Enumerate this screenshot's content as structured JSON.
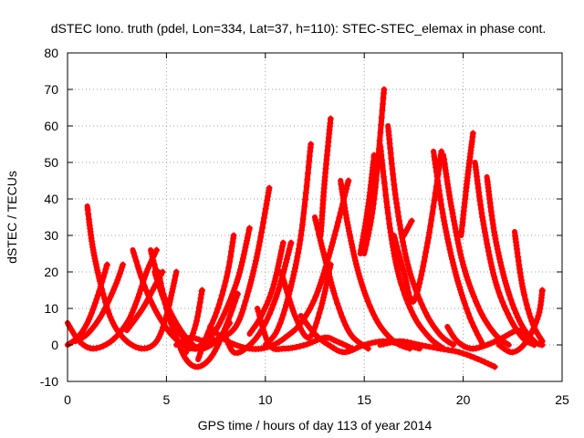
{
  "chart_data": {
    "type": "scatter",
    "title": "dSTEC Iono. truth (pdel, Lon=334, Lat=37, h=110): STEC-STEC_elemax in phase cont.",
    "xlabel": "GPS time / hours of day 113 of year 2014",
    "ylabel": "dSTEC  / TECUs",
    "xlim": [
      0,
      25
    ],
    "ylim": [
      -10,
      80
    ],
    "xticks": [
      0,
      5,
      10,
      15,
      20,
      25
    ],
    "yticks": [
      -10,
      0,
      10,
      20,
      30,
      40,
      50,
      60,
      70,
      80
    ],
    "grid": true,
    "marker": "+",
    "color": "#ff0000",
    "series": [
      {
        "x": [
          1.0,
          1.3,
          1.8,
          2.3,
          3.0,
          3.8,
          4.5,
          5.0,
          5.5
        ],
        "y": [
          38,
          26,
          14,
          6,
          1,
          -1,
          1,
          8,
          20
        ]
      },
      {
        "x": [
          0.0,
          0.5,
          1.0,
          1.5,
          2.0
        ],
        "y": [
          0,
          2,
          6,
          13,
          22
        ]
      },
      {
        "x": [
          0.0,
          0.6,
          1.3,
          2.2,
          3.0,
          3.5,
          4.0,
          4.5
        ],
        "y": [
          6,
          1,
          -1,
          1,
          6,
          12,
          20,
          26
        ]
      },
      {
        "x": [
          0.4,
          1.0,
          1.7,
          2.4,
          2.8
        ],
        "y": [
          1,
          3,
          8,
          16,
          22
        ]
      },
      {
        "x": [
          3.3,
          3.9,
          4.6,
          5.4,
          6.3,
          7.3
        ],
        "y": [
          26,
          16,
          8,
          2,
          -1,
          2
        ]
      },
      {
        "x": [
          4.2,
          4.6,
          5.2,
          6.0,
          6.7,
          7.5,
          8.2
        ],
        "y": [
          26,
          18,
          9,
          2,
          -1,
          1,
          6
        ]
      },
      {
        "x": [
          4.4,
          4.9,
          5.6,
          6.4,
          7.0,
          7.7,
          8.6,
          9.2
        ],
        "y": [
          20,
          12,
          4,
          -1,
          1,
          6,
          18,
          32
        ]
      },
      {
        "x": [
          3.0,
          3.8,
          4.4,
          4.8
        ],
        "y": [
          4,
          10,
          16,
          20
        ]
      },
      {
        "x": [
          4.6,
          5.0,
          5.5,
          6.0,
          6.6,
          7.3,
          8.0,
          8.6
        ],
        "y": [
          20,
          10,
          2,
          -4,
          -6,
          -3,
          5,
          14
        ]
      },
      {
        "x": [
          5.5,
          6.2,
          7.0,
          7.8,
          8.5,
          9.0,
          9.6,
          10.2
        ],
        "y": [
          0,
          2,
          1,
          2,
          5,
          12,
          25,
          43
        ]
      },
      {
        "x": [
          6.0,
          6.5,
          6.8
        ],
        "y": [
          -2,
          6,
          15
        ]
      },
      {
        "x": [
          6.6,
          7.0,
          7.6,
          8.1,
          8.4
        ],
        "y": [
          -4,
          2,
          10,
          20,
          30
        ]
      },
      {
        "x": [
          7.2,
          7.8,
          8.5,
          9.2,
          9.8,
          10.4,
          11.0,
          11.8,
          12.6,
          13.4,
          14.2
        ],
        "y": [
          5,
          2,
          0,
          -1,
          -1,
          0,
          2,
          6,
          14,
          28,
          45
        ]
      },
      {
        "x": [
          8.0,
          8.4,
          9.0,
          9.8,
          10.6,
          11.3
        ],
        "y": [
          2,
          -2,
          -1,
          4,
          14,
          28
        ]
      },
      {
        "x": [
          9.2,
          9.8,
          10.4,
          10.9
        ],
        "y": [
          3,
          8,
          16,
          28
        ]
      },
      {
        "x": [
          10.0,
          10.6,
          11.2,
          11.8,
          12.3
        ],
        "y": [
          0,
          4,
          14,
          30,
          55
        ]
      },
      {
        "x": [
          9.6,
          10.2,
          11.0,
          12.0,
          13.0,
          13.6,
          14.4
        ],
        "y": [
          10,
          0,
          -1,
          0,
          2,
          1,
          -1
        ]
      },
      {
        "x": [
          10.8,
          11.5,
          12.2,
          12.8,
          13.3
        ],
        "y": [
          20,
          8,
          2,
          10,
          22
        ]
      },
      {
        "x": [
          11.8,
          12.5,
          13.2,
          14.0,
          15.0,
          16.0,
          17.0,
          17.8
        ],
        "y": [
          8,
          3,
          0,
          -2,
          0,
          1,
          0,
          -1
        ]
      },
      {
        "x": [
          12.8,
          13.0,
          13.3
        ],
        "y": [
          30,
          45,
          62
        ]
      },
      {
        "x": [
          12.5,
          13.0,
          13.6,
          14.3,
          15.2
        ],
        "y": [
          35,
          24,
          12,
          3,
          -1
        ]
      },
      {
        "x": [
          13.8,
          14.2,
          14.8,
          15.6,
          16.5,
          17.3
        ],
        "y": [
          45,
          32,
          18,
          7,
          1,
          -1
        ]
      },
      {
        "x": [
          14.8,
          15.2,
          15.5
        ],
        "y": [
          25,
          38,
          52
        ]
      },
      {
        "x": [
          15.0,
          15.5,
          16.0
        ],
        "y": [
          25,
          40,
          70
        ]
      },
      {
        "x": [
          16.2,
          16.6,
          17.2,
          18.0,
          18.8,
          19.5
        ],
        "y": [
          60,
          40,
          22,
          10,
          3,
          0
        ]
      },
      {
        "x": [
          15.8,
          16.3,
          16.8,
          17.5,
          18.3,
          19.0
        ],
        "y": [
          55,
          32,
          18,
          8,
          2,
          -1
        ]
      },
      {
        "x": [
          16.5,
          17.0,
          17.5,
          18.2,
          18.9
        ],
        "y": [
          30,
          20,
          12,
          28,
          53
        ]
      },
      {
        "x": [
          17.0,
          17.4
        ],
        "y": [
          30,
          34
        ]
      },
      {
        "x": [
          15.8,
          16.8,
          17.8,
          18.8,
          19.8,
          20.8,
          21.6
        ],
        "y": [
          0,
          1,
          0,
          -1,
          -2,
          -4,
          -6
        ]
      },
      {
        "x": [
          18.5,
          19.0,
          19.6,
          20.3,
          21.0
        ],
        "y": [
          53,
          35,
          20,
          8,
          0
        ]
      },
      {
        "x": [
          19.0,
          19.4,
          20.0,
          20.8,
          21.6,
          22.3
        ],
        "y": [
          52,
          38,
          22,
          10,
          3,
          0
        ]
      },
      {
        "x": [
          19.9,
          20.2,
          20.5
        ],
        "y": [
          30,
          45,
          58
        ]
      },
      {
        "x": [
          19.2,
          19.7,
          20.4,
          21.2,
          22.0,
          22.8,
          23.4
        ],
        "y": [
          5,
          1,
          -1,
          0,
          2,
          4,
          2
        ]
      },
      {
        "x": [
          20.6,
          21.0,
          21.6,
          22.3,
          23.0,
          23.6
        ],
        "y": [
          50,
          34,
          18,
          8,
          2,
          0
        ]
      },
      {
        "x": [
          21.2,
          21.6,
          22.2,
          22.9,
          23.6,
          24.0
        ],
        "y": [
          46,
          30,
          16,
          6,
          1,
          0
        ]
      },
      {
        "x": [
          22.6,
          23.0,
          23.5,
          24.0
        ],
        "y": [
          31,
          16,
          6,
          1
        ]
      },
      {
        "x": [
          21.8,
          22.5,
          23.2,
          23.8,
          24.0
        ],
        "y": [
          0,
          -2,
          1,
          8,
          15
        ]
      }
    ]
  }
}
